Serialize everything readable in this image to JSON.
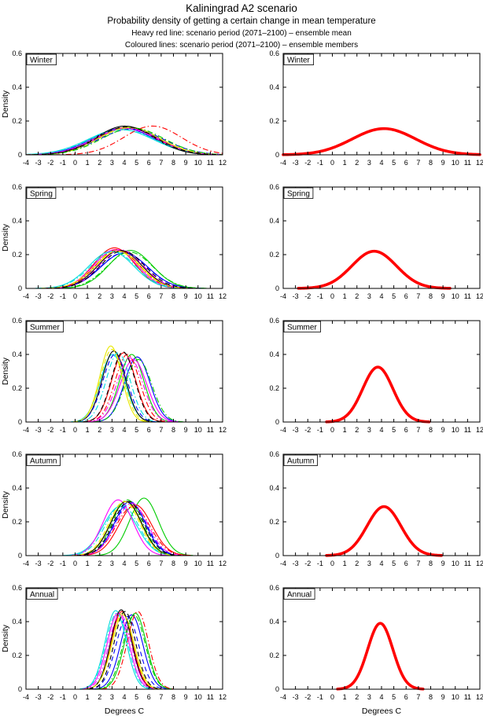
{
  "header": {
    "title": "Kaliningrad A2 scenario",
    "subtitle": "Probability density of getting a certain change in mean temperature",
    "legend_line1": "Heavy red line: scenario period (2071–2100) – ensemble mean",
    "legend_line2": "Coloured lines: scenario period (2071–2100) – ensemble members"
  },
  "axes": {
    "xlabel": "Degrees C",
    "ylabel": "Density",
    "xlim": [
      -4,
      12
    ],
    "ylim": [
      0,
      0.6
    ],
    "xticks": [
      -4,
      -3,
      -2,
      -1,
      0,
      1,
      2,
      3,
      4,
      5,
      6,
      7,
      8,
      9,
      10,
      11,
      12
    ],
    "yticks": [
      0,
      0.2,
      0.4,
      0.6
    ],
    "ytick_labels": [
      "0",
      "0.2",
      "0.4",
      "0.6"
    ],
    "grid": false,
    "box": true
  },
  "colors": {
    "ensemble_mean_red": "#ff0000",
    "member_palette": [
      "#0000ff",
      "#00cc00",
      "#ff0000",
      "#00dddd",
      "#ff00ff",
      "#e8e800",
      "#000000"
    ],
    "axis": "#000000",
    "background": "#ffffff"
  },
  "chart_data": [
    {
      "season": "Winter",
      "type": "line",
      "curve_model": "gaussian_pdf",
      "x_range": [
        -4,
        12
      ],
      "y_range": [
        0,
        0.6
      ],
      "members": [
        {
          "color": "#0000ff",
          "style": "solid",
          "center": 3.9,
          "peak": 0.158
        },
        {
          "color": "#00cc00",
          "style": "solid",
          "center": 4.4,
          "peak": 0.163
        },
        {
          "color": "#ff0000",
          "style": "solid",
          "center": 4.15,
          "peak": 0.16
        },
        {
          "color": "#00dddd",
          "style": "solid",
          "center": 3.7,
          "peak": 0.15
        },
        {
          "color": "#ff00ff",
          "style": "solid",
          "center": 4.25,
          "peak": 0.158
        },
        {
          "color": "#e8e800",
          "style": "solid",
          "center": 4.45,
          "peak": 0.162
        },
        {
          "color": "#000000",
          "style": "solid",
          "center": 4.05,
          "peak": 0.17
        },
        {
          "color": "#0000ff",
          "style": "dashed",
          "center": 4.55,
          "peak": 0.152
        },
        {
          "color": "#00cc00",
          "style": "dashdot",
          "center": 4.7,
          "peak": 0.158
        },
        {
          "color": "#ff0000",
          "style": "dashdot",
          "center": 6.3,
          "peak": 0.17
        },
        {
          "color": "#00dddd",
          "style": "dashdot",
          "center": 3.85,
          "peak": 0.148
        },
        {
          "color": "#ff00ff",
          "style": "dashdot",
          "center": 4.1,
          "peak": 0.157
        },
        {
          "color": "#e8e800",
          "style": "dashed",
          "center": 4.35,
          "peak": 0.16
        },
        {
          "color": "#000000",
          "style": "dashed",
          "center": 4.2,
          "peak": 0.165
        }
      ],
      "ensemble_mean": {
        "color": "#ff0000",
        "style": "solid",
        "center": 4.2,
        "peak": 0.155
      }
    },
    {
      "season": "Spring",
      "type": "line",
      "curve_model": "gaussian_pdf",
      "x_range": [
        -4,
        12
      ],
      "y_range": [
        0,
        0.6
      ],
      "members": [
        {
          "color": "#0000ff",
          "style": "solid",
          "center": 4.0,
          "peak": 0.21
        },
        {
          "color": "#00cc00",
          "style": "solid",
          "center": 4.5,
          "peak": 0.225
        },
        {
          "color": "#ff0000",
          "style": "solid",
          "center": 3.2,
          "peak": 0.24
        },
        {
          "color": "#00dddd",
          "style": "solid",
          "center": 2.95,
          "peak": 0.22
        },
        {
          "color": "#ff00ff",
          "style": "solid",
          "center": 3.3,
          "peak": 0.23
        },
        {
          "color": "#e8e800",
          "style": "solid",
          "center": 3.5,
          "peak": 0.22
        },
        {
          "color": "#000000",
          "style": "solid",
          "center": 3.65,
          "peak": 0.225
        },
        {
          "color": "#0000ff",
          "style": "dashed",
          "center": 3.95,
          "peak": 0.21
        },
        {
          "color": "#00cc00",
          "style": "dashdot",
          "center": 4.45,
          "peak": 0.215
        },
        {
          "color": "#ff0000",
          "style": "dashdot",
          "center": 3.45,
          "peak": 0.23
        },
        {
          "color": "#00dddd",
          "style": "dashdot",
          "center": 3.1,
          "peak": 0.218
        },
        {
          "color": "#ff00ff",
          "style": "dashdot",
          "center": 3.75,
          "peak": 0.228
        },
        {
          "color": "#e8e800",
          "style": "dashed",
          "center": 3.4,
          "peak": 0.22
        },
        {
          "color": "#000000",
          "style": "dashed",
          "center": 3.85,
          "peak": 0.222
        }
      ],
      "ensemble_mean": {
        "color": "#ff0000",
        "style": "solid",
        "center": 3.4,
        "peak": 0.22
      }
    },
    {
      "season": "Summer",
      "type": "line",
      "curve_model": "gaussian_pdf",
      "x_range": [
        -4,
        12
      ],
      "y_range": [
        0,
        0.6
      ],
      "members": [
        {
          "color": "#0000ff",
          "style": "solid",
          "center": 5.05,
          "peak": 0.385
        },
        {
          "color": "#00cc00",
          "style": "solid",
          "center": 4.6,
          "peak": 0.4
        },
        {
          "color": "#ff0000",
          "style": "solid",
          "center": 3.95,
          "peak": 0.41
        },
        {
          "color": "#00dddd",
          "style": "solid",
          "center": 3.05,
          "peak": 0.4
        },
        {
          "color": "#ff00ff",
          "style": "solid",
          "center": 4.75,
          "peak": 0.37
        },
        {
          "color": "#e8e800",
          "style": "solid",
          "center": 2.9,
          "peak": 0.45
        },
        {
          "color": "#000000",
          "style": "solid",
          "center": 3.15,
          "peak": 0.42
        },
        {
          "color": "#0000ff",
          "style": "dashed",
          "center": 3.25,
          "peak": 0.4
        },
        {
          "color": "#00cc00",
          "style": "dashdot",
          "center": 5.15,
          "peak": 0.37
        },
        {
          "color": "#ff0000",
          "style": "dashdot",
          "center": 4.25,
          "peak": 0.4
        },
        {
          "color": "#00dddd",
          "style": "dashdot",
          "center": 3.5,
          "peak": 0.41
        },
        {
          "color": "#ff00ff",
          "style": "dashdot",
          "center": 4.45,
          "peak": 0.38
        },
        {
          "color": "#e8e800",
          "style": "dashed",
          "center": 3.0,
          "peak": 0.43
        },
        {
          "color": "#000000",
          "style": "dashed",
          "center": 3.9,
          "peak": 0.415
        }
      ],
      "ensemble_mean": {
        "color": "#ff0000",
        "style": "solid",
        "center": 3.7,
        "peak": 0.325
      }
    },
    {
      "season": "Autumn",
      "type": "line",
      "curve_model": "gaussian_pdf",
      "x_range": [
        -4,
        12
      ],
      "y_range": [
        0,
        0.6
      ],
      "members": [
        {
          "color": "#0000ff",
          "style": "solid",
          "center": 4.45,
          "peak": 0.32
        },
        {
          "color": "#00cc00",
          "style": "solid",
          "center": 5.6,
          "peak": 0.34
        },
        {
          "color": "#ff0000",
          "style": "solid",
          "center": 4.9,
          "peak": 0.3
        },
        {
          "color": "#00dddd",
          "style": "solid",
          "center": 3.65,
          "peak": 0.29
        },
        {
          "color": "#ff00ff",
          "style": "solid",
          "center": 3.5,
          "peak": 0.33
        },
        {
          "color": "#e8e800",
          "style": "solid",
          "center": 4.1,
          "peak": 0.32
        },
        {
          "color": "#000000",
          "style": "solid",
          "center": 4.15,
          "peak": 0.32
        },
        {
          "color": "#0000ff",
          "style": "dashed",
          "center": 4.5,
          "peak": 0.31
        },
        {
          "color": "#00cc00",
          "style": "dashdot",
          "center": 4.25,
          "peak": 0.33
        },
        {
          "color": "#ff0000",
          "style": "dashdot",
          "center": 4.7,
          "peak": 0.29
        },
        {
          "color": "#00dddd",
          "style": "dashdot",
          "center": 3.8,
          "peak": 0.3
        },
        {
          "color": "#ff00ff",
          "style": "dashdot",
          "center": 4.6,
          "peak": 0.31
        },
        {
          "color": "#e8e800",
          "style": "dashed",
          "center": 4.0,
          "peak": 0.32
        },
        {
          "color": "#000000",
          "style": "dashed",
          "center": 4.35,
          "peak": 0.32
        }
      ],
      "ensemble_mean": {
        "color": "#ff0000",
        "style": "solid",
        "center": 4.2,
        "peak": 0.29
      }
    },
    {
      "season": "Annual",
      "type": "line",
      "curve_model": "gaussian_pdf",
      "x_range": [
        -4,
        12
      ],
      "y_range": [
        0,
        0.6
      ],
      "members": [
        {
          "color": "#0000ff",
          "style": "solid",
          "center": 4.6,
          "peak": 0.44
        },
        {
          "color": "#00cc00",
          "style": "solid",
          "center": 4.9,
          "peak": 0.45
        },
        {
          "color": "#ff0000",
          "style": "solid",
          "center": 3.8,
          "peak": 0.46
        },
        {
          "color": "#00dddd",
          "style": "solid",
          "center": 3.3,
          "peak": 0.465
        },
        {
          "color": "#ff00ff",
          "style": "solid",
          "center": 3.5,
          "peak": 0.45
        },
        {
          "color": "#e8e800",
          "style": "solid",
          "center": 3.9,
          "peak": 0.44
        },
        {
          "color": "#000000",
          "style": "solid",
          "center": 3.75,
          "peak": 0.47
        },
        {
          "color": "#0000ff",
          "style": "dashed",
          "center": 4.25,
          "peak": 0.43
        },
        {
          "color": "#00cc00",
          "style": "dashdot",
          "center": 4.8,
          "peak": 0.44
        },
        {
          "color": "#ff0000",
          "style": "dashdot",
          "center": 5.1,
          "peak": 0.46
        },
        {
          "color": "#00dddd",
          "style": "dashdot",
          "center": 3.4,
          "peak": 0.45
        },
        {
          "color": "#ff00ff",
          "style": "dashdot",
          "center": 3.65,
          "peak": 0.445
        },
        {
          "color": "#e8e800",
          "style": "dashed",
          "center": 3.85,
          "peak": 0.45
        },
        {
          "color": "#000000",
          "style": "dashed",
          "center": 4.05,
          "peak": 0.46
        }
      ],
      "ensemble_mean": {
        "color": "#ff0000",
        "style": "solid",
        "center": 3.9,
        "peak": 0.39
      }
    }
  ]
}
